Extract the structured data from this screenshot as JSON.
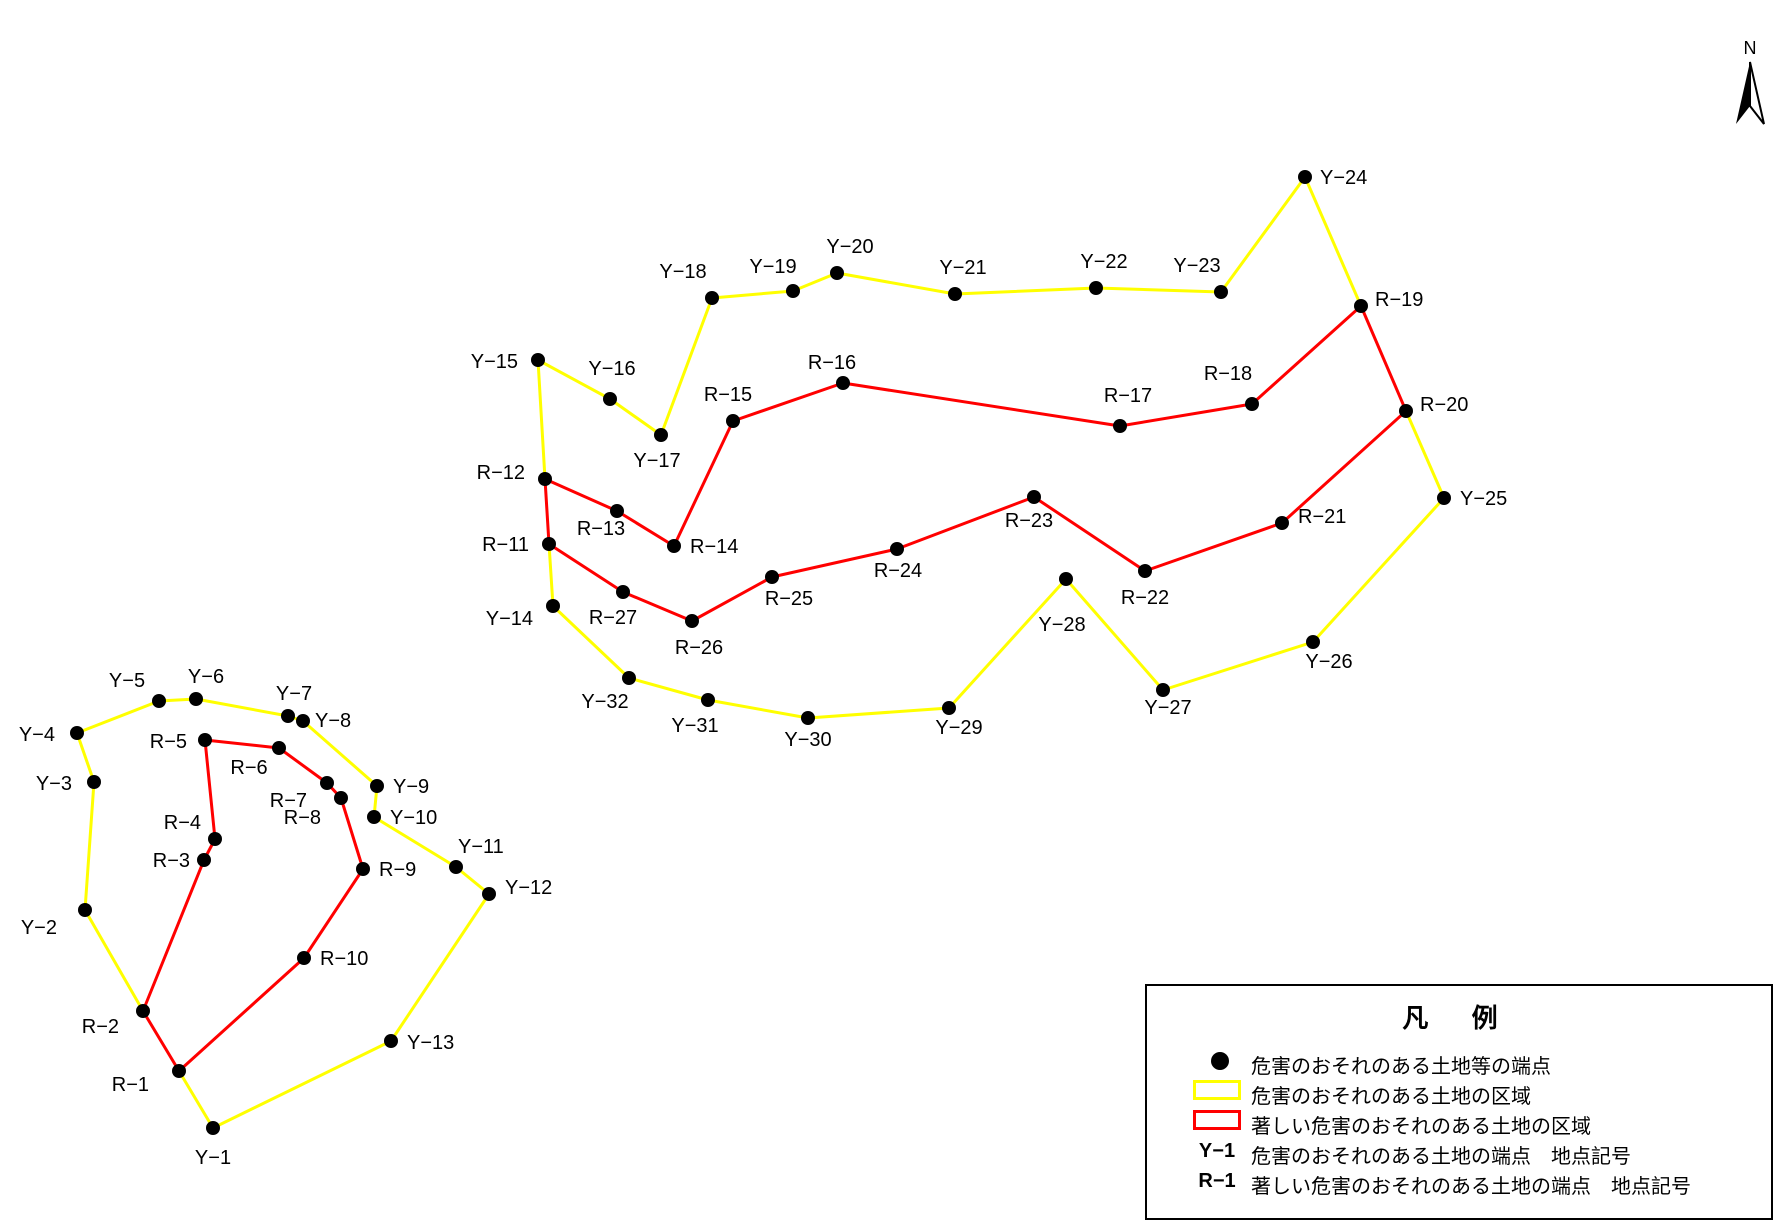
{
  "north_label": "N",
  "colors": {
    "yellow_line": "#ffff00",
    "red_line": "#ff0000",
    "point": "#000000"
  },
  "legend": {
    "title": "凡 例",
    "items": [
      {
        "symbol": "dot",
        "text": "危害のおそれのある土地等の端点"
      },
      {
        "symbol": "yellow-box",
        "text": "危害のおそれのある土地の区域"
      },
      {
        "symbol": "red-box",
        "text": "著しい危害のおそれのある土地の区域"
      },
      {
        "symbol": "Y−1",
        "text": "危害のおそれのある土地の端点　地点記号"
      },
      {
        "symbol": "R−1",
        "text": "著しい危害のおそれのある土地の端点　地点記号"
      }
    ]
  },
  "points": {
    "Y-1": "Y−1",
    "Y-2": "Y−2",
    "Y-3": "Y−3",
    "Y-4": "Y−4",
    "Y-5": "Y−5",
    "Y-6": "Y−6",
    "Y-7": "Y−7",
    "Y-8": "Y−8",
    "Y-9": "Y−9",
    "Y-10": "Y−10",
    "Y-11": "Y−11",
    "Y-12": "Y−12",
    "Y-13": "Y−13",
    "Y-14": "Y−14",
    "Y-15": "Y−15",
    "Y-16": "Y−16",
    "Y-17": "Y−17",
    "Y-18": "Y−18",
    "Y-19": "Y−19",
    "Y-20": "Y−20",
    "Y-21": "Y−21",
    "Y-22": "Y−22",
    "Y-23": "Y−23",
    "Y-24": "Y−24",
    "Y-25": "Y−25",
    "Y-26": "Y−26",
    "Y-27": "Y−27",
    "Y-28": "Y−28",
    "Y-29": "Y−29",
    "Y-30": "Y−30",
    "Y-31": "Y−31",
    "Y-32": "Y−32",
    "R-1": "R−1",
    "R-2": "R−2",
    "R-3": "R−3",
    "R-4": "R−4",
    "R-5": "R−5",
    "R-6": "R−6",
    "R-7": "R−7",
    "R-8": "R−8",
    "R-9": "R−9",
    "R-10": "R−10",
    "R-11": "R−11",
    "R-12": "R−12",
    "R-13": "R−13",
    "R-14": "R−14",
    "R-15": "R−15",
    "R-16": "R−16",
    "R-17": "R−17",
    "R-18": "R−18",
    "R-19": "R−19",
    "R-20": "R−20",
    "R-21": "R−21",
    "R-22": "R−22",
    "R-23": "R−23",
    "R-24": "R−24",
    "R-25": "R−25",
    "R-26": "R−26",
    "R-27": "R−27"
  },
  "boundaries": {
    "yellow_west": [
      "R-1",
      "Y-1",
      "Y-13",
      "Y-12",
      "Y-11",
      "Y-10",
      "Y-9",
      "Y-8",
      "Y-7",
      "Y-6",
      "Y-5",
      "Y-4",
      "Y-3",
      "Y-2",
      "R-2"
    ],
    "red_west": [
      "R-1",
      "R-10",
      "R-9",
      "R-8",
      "R-7",
      "R-6",
      "R-5",
      "R-4",
      "R-3",
      "R-2",
      "R-1"
    ],
    "yellow_east_outer": [
      "R-11",
      "Y-14",
      "Y-32",
      "Y-31",
      "Y-30",
      "Y-29",
      "Y-28",
      "Y-27",
      "Y-26",
      "Y-25",
      "R-20"
    ],
    "yellow_east_top": [
      "R-12",
      "Y-15",
      "Y-16",
      "Y-17",
      "Y-18",
      "Y-19",
      "Y-20",
      "Y-21",
      "Y-22",
      "Y-23",
      "Y-24",
      "R-19"
    ],
    "red_east": [
      "R-12",
      "R-13",
      "R-14",
      "R-15",
      "R-16",
      "R-17",
      "R-18",
      "R-19",
      "R-20",
      "R-21",
      "R-22",
      "R-23",
      "R-24",
      "R-25",
      "R-26",
      "R-27",
      "R-11",
      "R-12"
    ]
  }
}
